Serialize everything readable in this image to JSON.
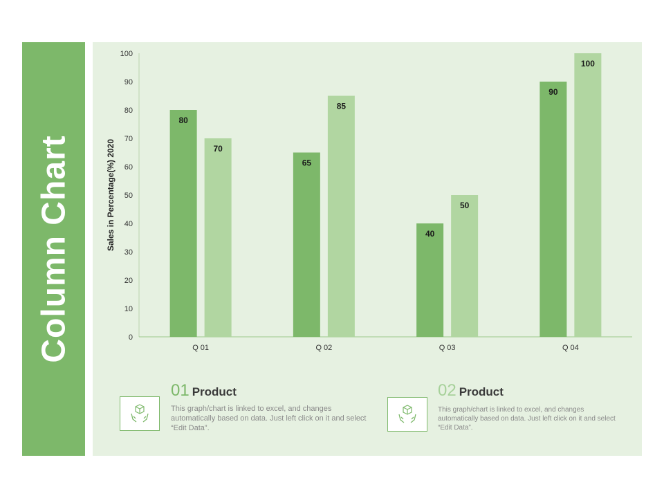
{
  "slide": {
    "title": "Column Chart"
  },
  "colors": {
    "series1": "#7db86a",
    "series2": "#b1d6a1",
    "num1": "#7db86a",
    "num2": "#a7d19a"
  },
  "chart_data": {
    "type": "bar",
    "categories": [
      "Q 01",
      "Q 02",
      "Q 03",
      "Q 04"
    ],
    "series": [
      {
        "values": [
          80,
          65,
          40,
          90
        ]
      },
      {
        "values": [
          70,
          85,
          50,
          100
        ]
      }
    ],
    "ylabel": "Sales in Percentage(%) 2020",
    "ylim": [
      0,
      100
    ],
    "yticks": [
      0,
      10,
      20,
      30,
      40,
      50,
      60,
      70,
      80,
      90,
      100
    ],
    "grid": false,
    "data_labels": true
  },
  "cards": [
    {
      "number": "01",
      "title": "Product",
      "icon": "hands-box-icon",
      "desc": "This graph/chart is linked to excel, and changes automatically based on data. Just left click on it and select “Edit Data”."
    },
    {
      "number": "02",
      "title": "Product",
      "icon": "hands-box-icon",
      "desc": "This graph/chart is linked to excel, and changes automatically based on data. Just left click on it and select “Edit Data”."
    }
  ]
}
